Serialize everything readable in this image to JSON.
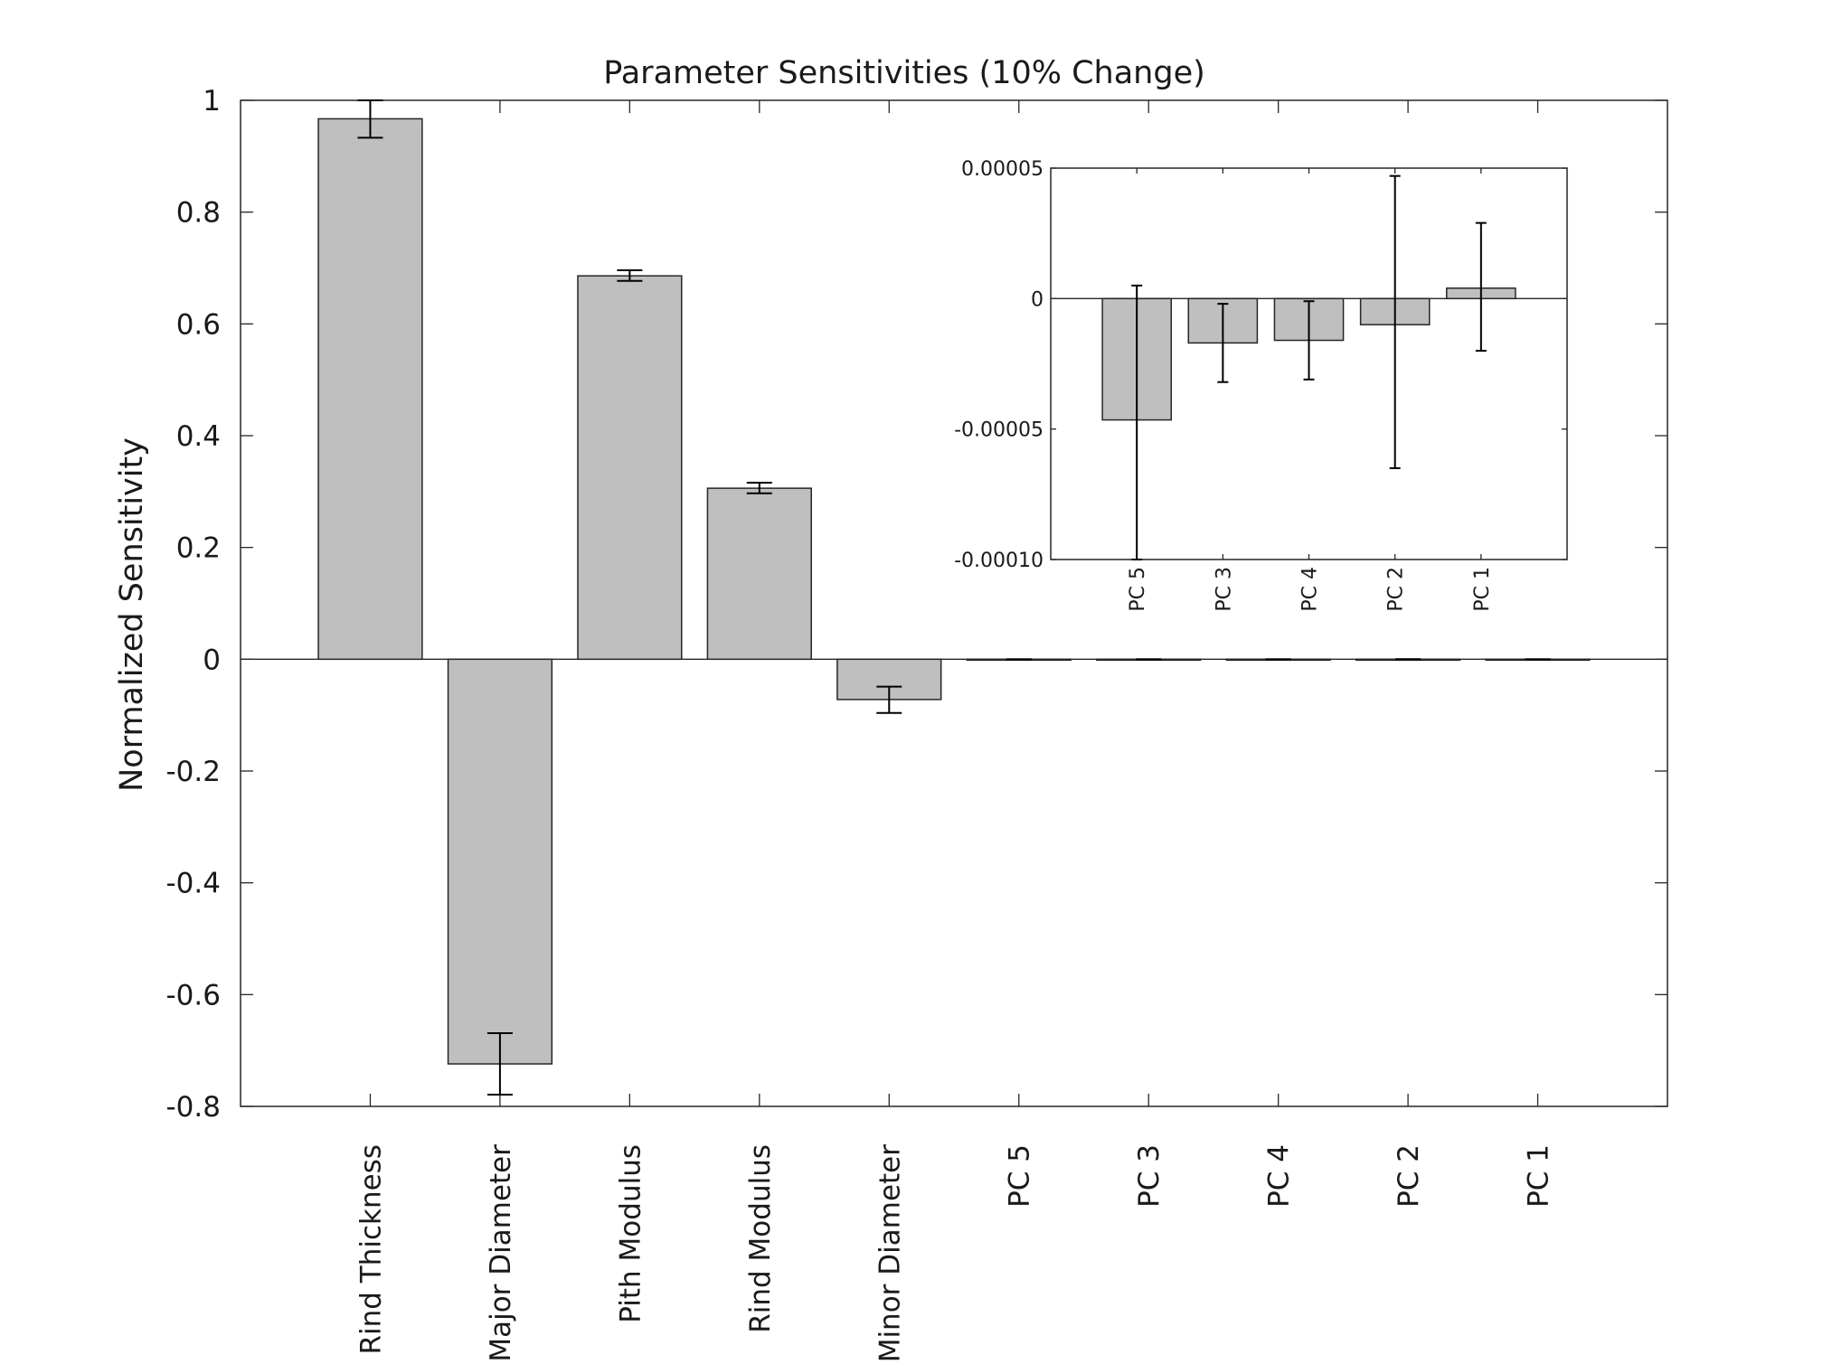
{
  "colors": {
    "bar_fill": "#bfbfbf",
    "bar_edge": "#262626",
    "error_bar": "#000000",
    "background": "#ffffff"
  },
  "chart_data": [
    {
      "type": "bar",
      "title": "Parameter Sensitivities (10% Change)",
      "xlabel": "",
      "ylabel": "Normalized Sensitivity",
      "ylim": [
        -0.8,
        1.0
      ],
      "yticks": [
        1,
        0.8,
        0.6,
        0.4,
        0.2,
        0,
        -0.2,
        -0.4,
        -0.6,
        -0.8
      ],
      "ytick_labels": [
        "1",
        "0.8",
        "0.6",
        "0.4",
        "0.2",
        "0",
        "-0.2",
        "-0.4",
        "-0.6",
        "-0.8"
      ],
      "categories": [
        "Rind Thickness",
        "Major Diameter",
        "Pith Modulus",
        "Rind Modulus",
        "Minor Diameter",
        "PC 5",
        "PC 3",
        "PC 4",
        "PC 2",
        "PC 1"
      ],
      "values": [
        0.967,
        -0.724,
        0.686,
        0.306,
        -0.072,
        -4.65e-05,
        -1.7e-05,
        -1.6e-05,
        -1e-05,
        4e-06
      ],
      "error_low": [
        0.933,
        -0.779,
        0.677,
        0.297,
        -0.096,
        -0.0001,
        -3.2e-05,
        -3.1e-05,
        -6.5e-05,
        -2e-05
      ],
      "error_high": [
        1.0,
        -0.669,
        0.696,
        0.316,
        -0.049,
        5e-06,
        -2e-06,
        -1e-06,
        4.7e-05,
        2.9e-05
      ],
      "grid": false,
      "legend": "none"
    },
    {
      "type": "bar",
      "role": "inset",
      "title": "",
      "xlabel": "",
      "ylabel": "",
      "ylim": [
        -0.0001,
        5e-05
      ],
      "yticks": [
        5e-05,
        0,
        -5e-05,
        -0.0001
      ],
      "ytick_labels": [
        "0.00005",
        "0",
        "-0.00005",
        "-0.00010"
      ],
      "categories": [
        "PC 5",
        "PC 3",
        "PC 4",
        "PC 2",
        "PC 1"
      ],
      "values": [
        -4.65e-05,
        -1.7e-05,
        -1.6e-05,
        -1e-05,
        4e-06
      ],
      "error_low": [
        -0.0001,
        -3.2e-05,
        -3.1e-05,
        -6.5e-05,
        -2e-05
      ],
      "error_high": [
        5e-06,
        -2e-06,
        -1e-06,
        4.7e-05,
        2.9e-05
      ],
      "grid": false,
      "legend": "none"
    }
  ]
}
